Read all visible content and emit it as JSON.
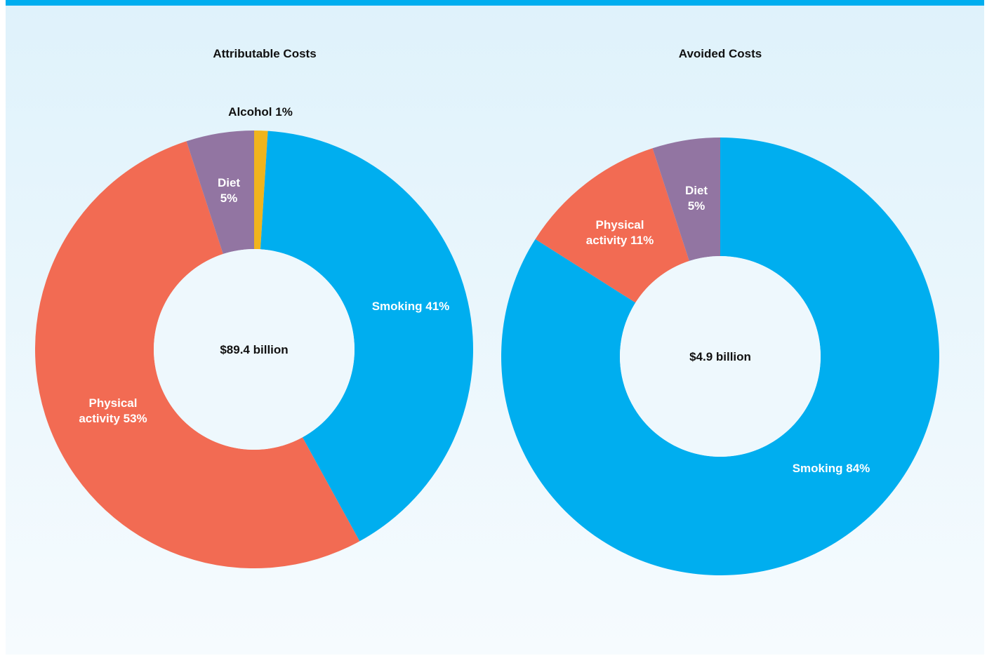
{
  "chart_data": [
    {
      "type": "donut",
      "title": "Attributable Costs",
      "center_label": "$89.4 billion",
      "categories": [
        "Alcohol",
        "Smoking",
        "Physical activity",
        "Diet"
      ],
      "values": [
        1,
        41,
        53,
        5
      ],
      "value_labels": [
        "1%",
        "41%",
        "53%",
        "5%"
      ],
      "colors": [
        "#f0b41c",
        "#00aeef",
        "#f26b53",
        "#9275a2"
      ]
    },
    {
      "type": "donut",
      "title": "Avoided Costs",
      "center_label": "$4.9 billion",
      "categories": [
        "Smoking",
        "Physical activity",
        "Diet"
      ],
      "values": [
        84,
        11,
        5
      ],
      "value_labels": [
        "84%",
        "11%",
        "5%"
      ],
      "colors": [
        "#00aeef",
        "#f26b53",
        "#9275a2"
      ]
    }
  ]
}
